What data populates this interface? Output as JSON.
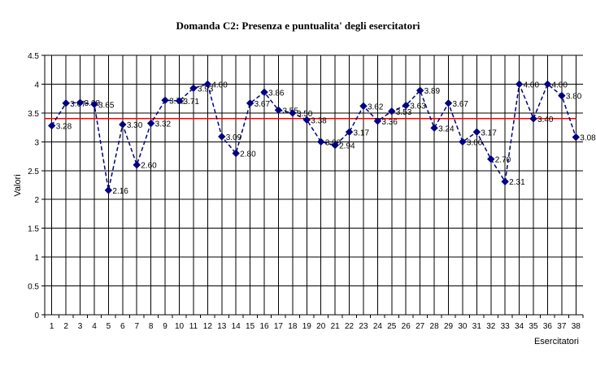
{
  "window": {
    "background": "#FFFFFF"
  },
  "chart_data": {
    "type": "line",
    "title": "Domanda C2: Presenza e puntualita' degli esercitatori",
    "xlabel": "Esercitatori",
    "ylabel": "Valori",
    "ylim": [
      0,
      4.5
    ],
    "ytick_step": 0.5,
    "ytick_labels": [
      "0",
      "0.5",
      "1",
      "1.5",
      "2",
      "2.5",
      "3",
      "3.5",
      "4",
      "4.5"
    ],
    "categories": [
      1,
      2,
      3,
      4,
      5,
      6,
      7,
      8,
      9,
      10,
      11,
      12,
      13,
      14,
      15,
      16,
      17,
      18,
      19,
      20,
      21,
      22,
      23,
      24,
      25,
      26,
      27,
      28,
      29,
      30,
      31,
      32,
      33,
      34,
      35,
      36,
      37,
      38
    ],
    "grid": {
      "horizontal": true,
      "vertical": true,
      "color": "#000000"
    },
    "legend": "none",
    "series": [
      {
        "name": "Valori",
        "color": "#000080",
        "marker": "diamond",
        "line_style": "dashed",
        "values": [
          3.28,
          3.67,
          3.68,
          3.65,
          2.16,
          3.3,
          2.6,
          3.32,
          3.72,
          3.71,
          3.93,
          4.0,
          3.09,
          2.8,
          3.67,
          3.86,
          3.55,
          3.5,
          3.38,
          3.0,
          2.94,
          3.17,
          3.62,
          3.36,
          3.53,
          3.63,
          3.89,
          3.24,
          3.67,
          3.0,
          3.17,
          2.7,
          2.31,
          4.0,
          3.4,
          4.0,
          3.8,
          3.08
        ],
        "point_labels": [
          "3.28",
          "3.67",
          "3.68",
          "3.65",
          "2.16",
          "3.30",
          "2.60",
          "3.32",
          "3.72",
          "3.71",
          "3.93",
          "4.00",
          "3.09",
          "2.80",
          "3.67",
          "3.86",
          "3.55",
          "3.50",
          "3.38",
          "3.00",
          "2.94",
          "3.17",
          "3.62",
          "3.36",
          "3.53",
          "3.63",
          "3.89",
          "3.24",
          "3.67",
          "3.00",
          "3.17",
          "2.70",
          "2.31",
          "4.00",
          "3.40",
          "4.00",
          "3.80",
          "3.08"
        ]
      }
    ],
    "reference_line": {
      "value": 3.4,
      "color": "#FF0000"
    },
    "colors": {
      "axis": "#000000",
      "text": "#000000"
    }
  }
}
